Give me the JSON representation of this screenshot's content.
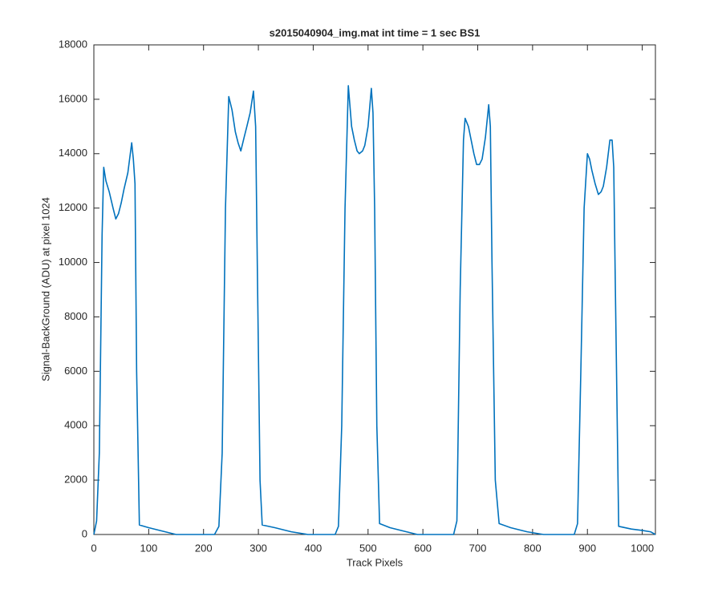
{
  "chart_data": {
    "type": "line",
    "title": "s2015040904_img.mat int time = 1 sec   BS1",
    "x_label": "Track Pixels",
    "y_label": "Signal-BackGround (ADU) at pixel 1024",
    "xlim": [
      0,
      1024
    ],
    "ylim": [
      0,
      18000
    ],
    "xticks": [
      0,
      100,
      200,
      300,
      400,
      500,
      600,
      700,
      800,
      900,
      1000
    ],
    "yticks": [
      0,
      2000,
      4000,
      6000,
      8000,
      10000,
      12000,
      14000,
      16000,
      18000
    ],
    "grid": false,
    "series": [
      {
        "color": "#0072bd",
        "x": [
          0,
          5,
          10,
          15,
          18,
          22,
          28,
          35,
          40,
          45,
          50,
          55,
          62,
          69,
          72,
          75,
          78,
          83,
          100,
          130,
          150,
          180,
          220,
          228,
          234,
          240,
          246,
          252,
          258,
          263,
          268,
          274,
          279,
          285,
          291,
          295,
          298,
          303,
          307,
          330,
          360,
          390,
          440,
          446,
          452,
          458,
          464,
          470,
          475,
          480,
          484,
          490,
          494,
          500,
          506,
          509,
          512,
          516,
          521,
          540,
          570,
          590,
          650,
          656,
          662,
          668,
          674,
          677,
          683,
          688,
          693,
          698,
          703,
          708,
          714,
          720,
          723,
          726,
          732,
          739,
          760,
          790,
          820,
          870,
          876,
          882,
          888,
          894,
          900,
          904,
          908,
          914,
          920,
          925,
          929,
          935,
          941,
          945,
          948,
          951,
          957,
          980,
          1000,
          1015,
          1024
        ],
        "values": [
          0,
          500,
          3000,
          11000,
          13500,
          13000,
          12600,
          12000,
          11600,
          11800,
          12200,
          12700,
          13300,
          14400,
          13800,
          12900,
          6000,
          350,
          250,
          100,
          0,
          0,
          0,
          300,
          3000,
          12000,
          16100,
          15600,
          14800,
          14400,
          14100,
          14600,
          15000,
          15500,
          16300,
          15000,
          10000,
          2000,
          350,
          250,
          100,
          0,
          0,
          300,
          4000,
          12000,
          16500,
          15000,
          14500,
          14100,
          14000,
          14100,
          14300,
          15000,
          16400,
          15500,
          12000,
          4000,
          400,
          250,
          100,
          0,
          0,
          0,
          500,
          9000,
          14500,
          15300,
          15000,
          14500,
          14000,
          13600,
          13600,
          13800,
          14600,
          15800,
          15000,
          10000,
          2000,
          400,
          250,
          100,
          0,
          0,
          0,
          400,
          6000,
          12000,
          14000,
          13800,
          13400,
          12900,
          12500,
          12600,
          12800,
          13500,
          14500,
          14500,
          13500,
          9000,
          300,
          200,
          150,
          100,
          0
        ]
      }
    ]
  }
}
